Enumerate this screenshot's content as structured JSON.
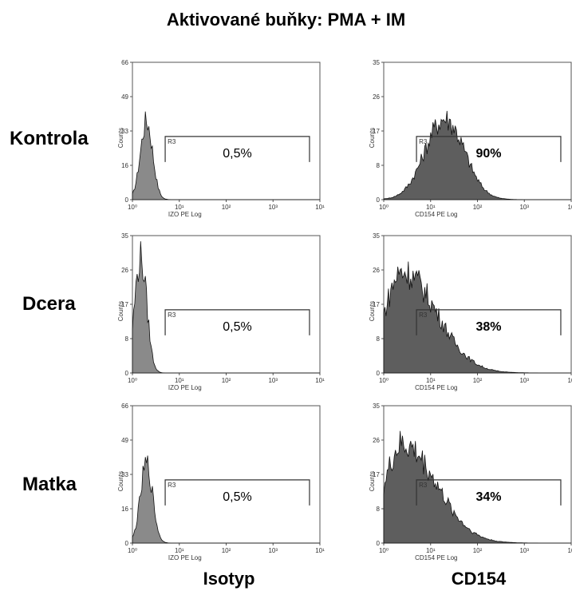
{
  "title": "Aktivované buňky: PMA + IM",
  "rows": [
    "Kontrola",
    "Dcera",
    "Matka"
  ],
  "columns": [
    "Isotyp",
    "CD154"
  ],
  "chart_data": [
    {
      "type": "histogram",
      "row": "Kontrola",
      "column": "Isotyp",
      "xlabel": "IZO PE Log",
      "ylabel": "Counts",
      "yticks": [
        "0",
        "16",
        "33",
        "49",
        "66"
      ],
      "ymax": 66,
      "xticks": [
        "10⁰",
        "10¹",
        "10²",
        "10³",
        "10¹"
      ],
      "gate": {
        "name": "R3",
        "x_from": 5,
        "x_to": 6000
      },
      "percent": "0,5%",
      "peak_x": 2,
      "peak_y": 44
    },
    {
      "type": "histogram",
      "row": "Kontrola",
      "column": "CD154",
      "xlabel": "CD154 PE Log",
      "ylabel": "Counts",
      "yticks": [
        "0",
        "8",
        "17",
        "26",
        "35"
      ],
      "ymax": 35,
      "xticks": [
        "10⁰",
        "10¹",
        "10²",
        "10³",
        "10"
      ],
      "gate": {
        "name": "R3",
        "x_from": 5,
        "x_to": 6000
      },
      "percent": "90%",
      "peak_x": 20,
      "peak_y": 24
    },
    {
      "type": "histogram",
      "row": "Dcera",
      "column": "Isotyp",
      "xlabel": "IZO PE Log",
      "ylabel": "Counts",
      "yticks": [
        "0",
        "8",
        "17",
        "26",
        "35"
      ],
      "ymax": 35,
      "xticks": [
        "10⁰",
        "10¹",
        "10²",
        "10³",
        "10¹"
      ],
      "gate": {
        "name": "R3",
        "x_from": 5,
        "x_to": 6000
      },
      "percent": "0,5%",
      "peak_x": 1.5,
      "peak_y": 34
    },
    {
      "type": "histogram",
      "row": "Dcera",
      "column": "CD154",
      "xlabel": "CD154 PE Log",
      "ylabel": "Counts",
      "yticks": [
        "0",
        "8",
        "17",
        "26",
        "35"
      ],
      "ymax": 35,
      "xticks": [
        "10⁰",
        "10¹",
        "10²",
        "10³",
        "10"
      ],
      "gate": {
        "name": "R3",
        "x_from": 5,
        "x_to": 6000
      },
      "percent": "38%",
      "peak_x": 2.5,
      "peak_y": 30
    },
    {
      "type": "histogram",
      "row": "Matka",
      "column": "Isotyp",
      "xlabel": "IZO PE Log",
      "ylabel": "Counts",
      "yticks": [
        "0",
        "16",
        "33",
        "49",
        "66"
      ],
      "ymax": 66,
      "xticks": [
        "10⁰",
        "10¹",
        "10²",
        "10³",
        "10¹"
      ],
      "gate": {
        "name": "R3",
        "x_from": 5,
        "x_to": 6000
      },
      "percent": "0,5%",
      "peak_x": 2,
      "peak_y": 44
    },
    {
      "type": "histogram",
      "row": "Matka",
      "column": "CD154",
      "xlabel": "CD154 PE Log",
      "ylabel": "Counts",
      "yticks": [
        "0",
        "8",
        "17",
        "26",
        "35"
      ],
      "ymax": 35,
      "xticks": [
        "10⁰",
        "10¹",
        "10²",
        "10³",
        "10"
      ],
      "gate": {
        "name": "R3",
        "x_from": 5,
        "x_to": 6000
      },
      "percent": "34%",
      "peak_x": 2.5,
      "peak_y": 29
    }
  ]
}
